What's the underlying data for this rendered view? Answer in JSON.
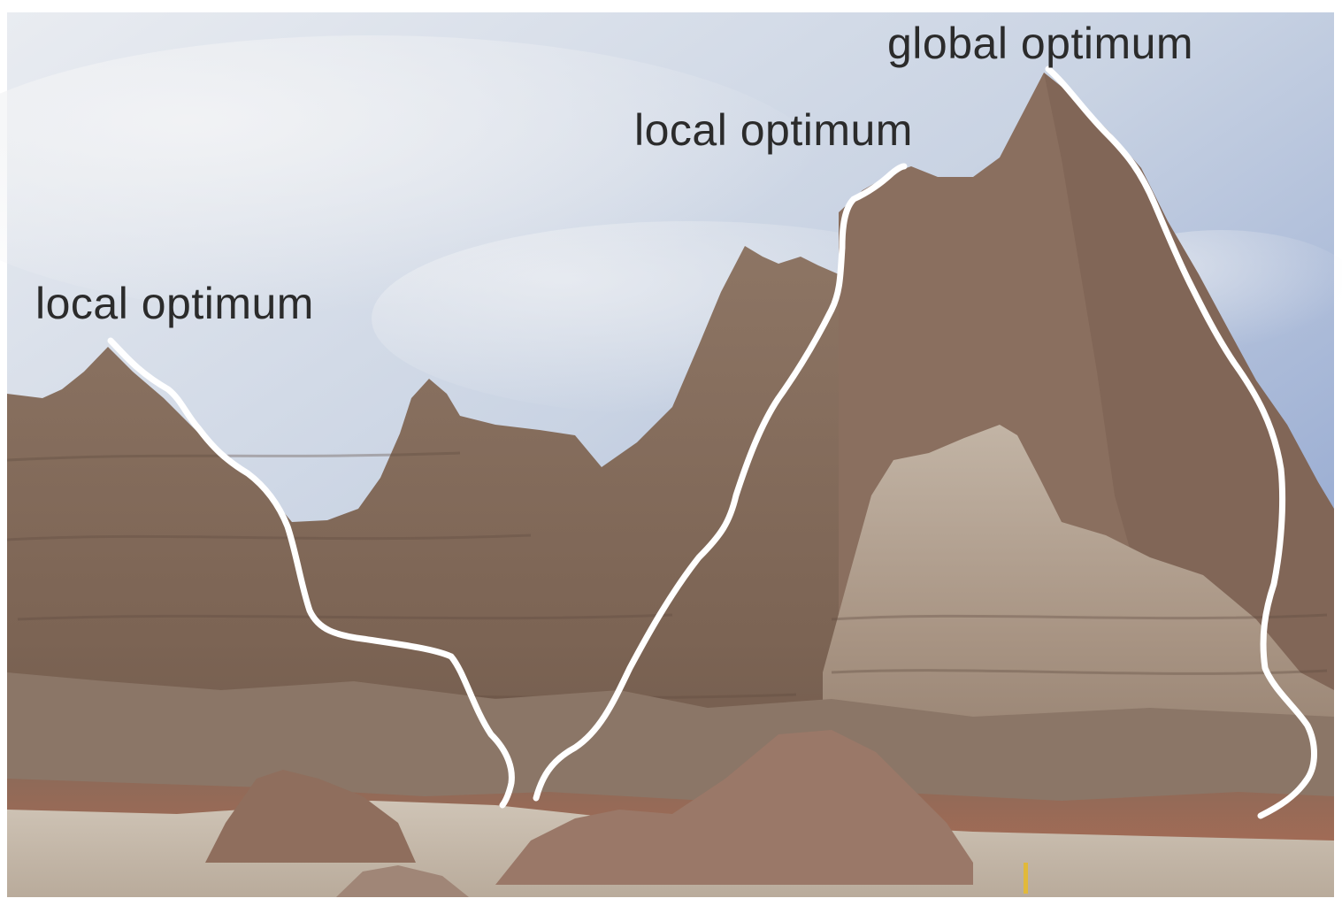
{
  "image": {
    "labels": {
      "local_optimum_left": "local optimum",
      "local_optimum_middle": "local optimum",
      "global_optimum": "global optimum"
    },
    "colors": {
      "sky_top": "#8ea4cf",
      "sky_mid": "#c2cde0",
      "cloud": "#e7ebf2",
      "rock_dark": "#6f5a4d",
      "rock_mid": "#8a7263",
      "rock_light": "#b3a292",
      "rock_pale": "#c7bbae",
      "red_band": "#9a6350",
      "ground": "#cbbfb1",
      "trace_line": "#ffffff",
      "label_text": "#2b2b2b"
    }
  }
}
